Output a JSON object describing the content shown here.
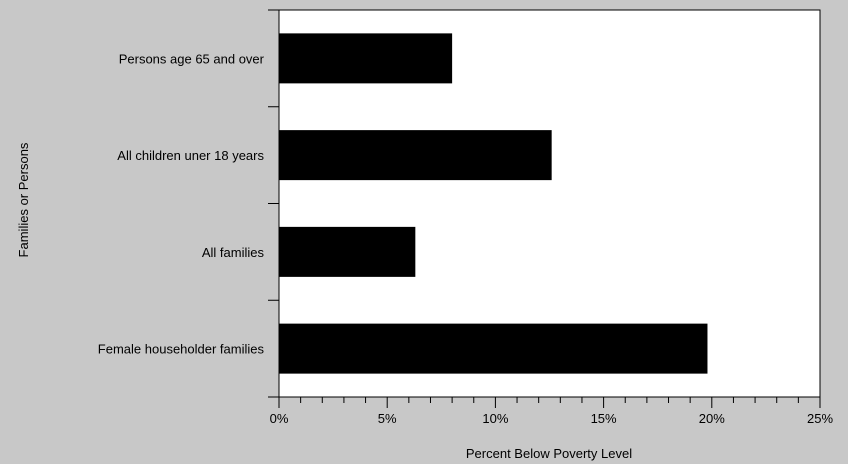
{
  "chart_data": {
    "type": "bar",
    "orientation": "horizontal",
    "categories": [
      "Persons age 65 and over",
      "All children uner 18 years",
      "All families",
      "Female householder families"
    ],
    "values": [
      8.0,
      12.6,
      6.3,
      19.8
    ],
    "xlabel": "Percent Below Poverty Level",
    "ylabel": "Families or Persons",
    "xlim": [
      0,
      25
    ],
    "x_ticks": [
      0,
      5,
      10,
      15,
      20,
      25
    ],
    "x_tick_labels": [
      "0%",
      "5%",
      "10%",
      "15%",
      "20%",
      "25%"
    ],
    "grid": false,
    "legend": "none",
    "colors": {
      "bar": "#000000",
      "plot_background": "#ffffff",
      "page_background": "#c8c8c8"
    }
  }
}
